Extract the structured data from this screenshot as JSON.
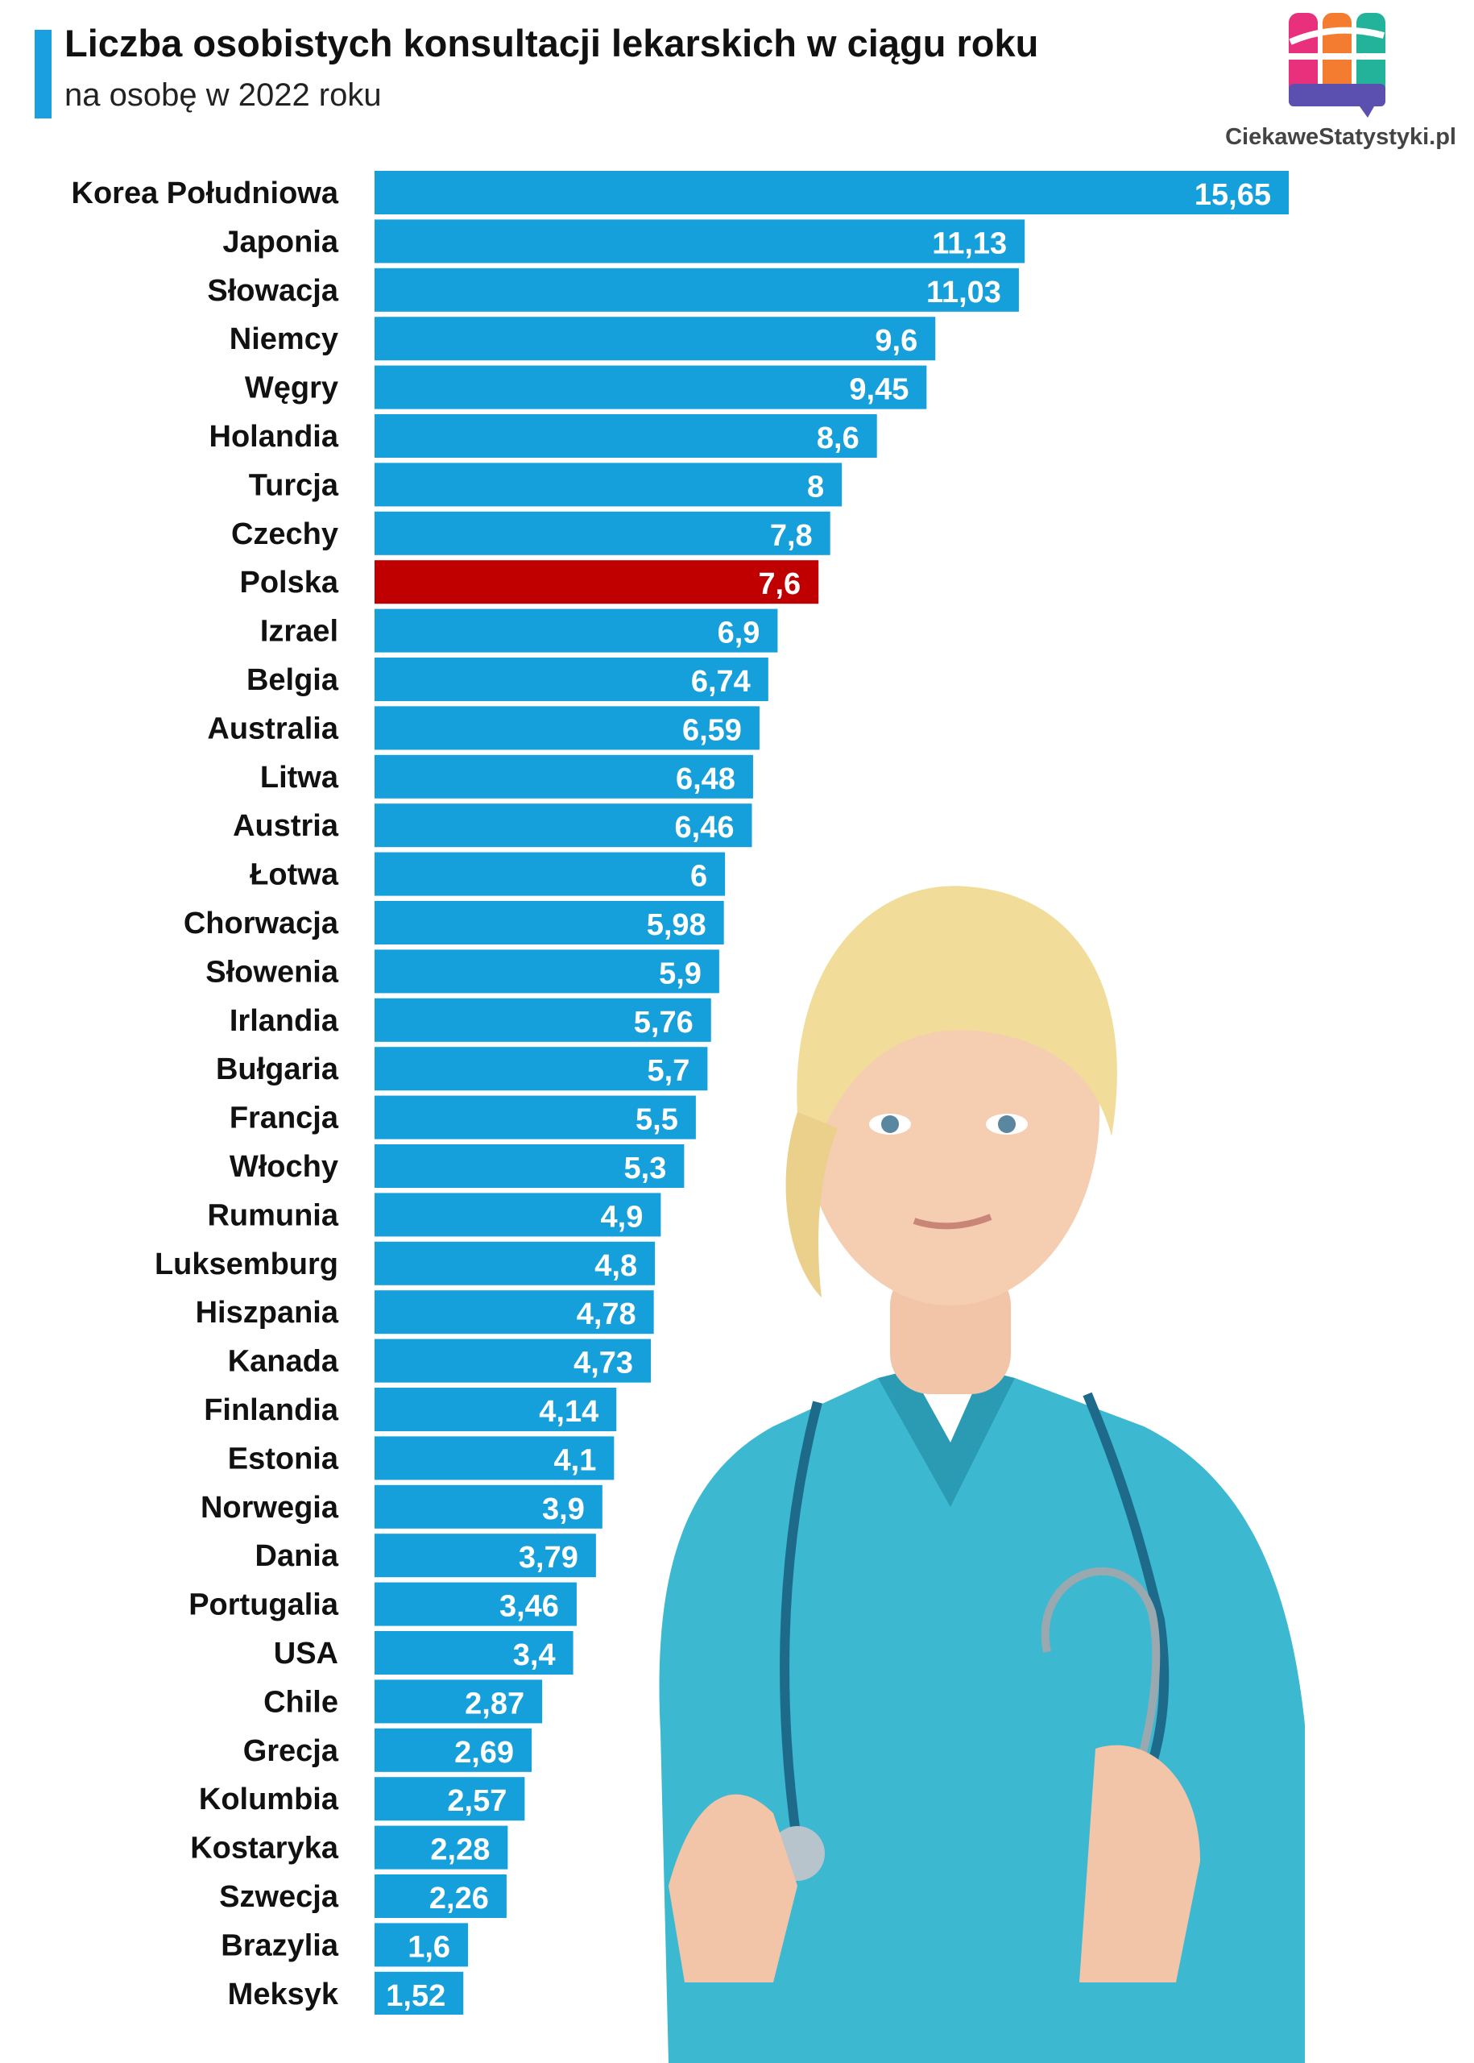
{
  "header": {
    "title": "Liczba osobistych konsultacji lekarskich w ciągu roku",
    "subtitle": "na osobę w 2022 roku"
  },
  "logo": {
    "text": "CiekaweStatystyki.pl"
  },
  "colors": {
    "bar": "#15a0dc",
    "highlight": "#c00000",
    "accent": "#1aa0e0"
  },
  "chart_data": {
    "type": "bar",
    "orientation": "horizontal",
    "title": "Liczba osobistych konsultacji lekarskich w ciągu roku",
    "subtitle": "na osobę w 2022 roku",
    "highlight": "Polska",
    "categories": [
      "Korea Południowa",
      "Japonia",
      "Słowacja",
      "Niemcy",
      "Węgry",
      "Holandia",
      "Turcja",
      "Czechy",
      "Polska",
      "Izrael",
      "Belgia",
      "Australia",
      "Litwa",
      "Austria",
      "Łotwa",
      "Chorwacja",
      "Słowenia",
      "Irlandia",
      "Bułgaria",
      "Francja",
      "Włochy",
      "Rumunia",
      "Luksemburg",
      "Hiszpania",
      "Kanada",
      "Finlandia",
      "Estonia",
      "Norwegia",
      "Dania",
      "Portugalia",
      "USA",
      "Chile",
      "Grecja",
      "Kolumbia",
      "Kostaryka",
      "Szwecja",
      "Brazylia",
      "Meksyk"
    ],
    "values": [
      15.65,
      11.13,
      11.03,
      9.6,
      9.45,
      8.6,
      8,
      7.8,
      7.6,
      6.9,
      6.74,
      6.59,
      6.48,
      6.46,
      6,
      5.98,
      5.9,
      5.76,
      5.7,
      5.5,
      5.3,
      4.9,
      4.8,
      4.78,
      4.73,
      4.14,
      4.1,
      3.9,
      3.79,
      3.46,
      3.4,
      2.87,
      2.69,
      2.57,
      2.28,
      2.26,
      1.6,
      1.52
    ],
    "value_labels": [
      "15,65",
      "11,13",
      "11,03",
      "9,6",
      "9,45",
      "8,6",
      "8",
      "7,8",
      "7,6",
      "6,9",
      "6,74",
      "6,59",
      "6,48",
      "6,46",
      "6",
      "5,98",
      "5,9",
      "5,76",
      "5,7",
      "5,5",
      "5,3",
      "4,9",
      "4,8",
      "4,78",
      "4,73",
      "4,14",
      "4,1",
      "3,9",
      "3,79",
      "3,46",
      "3,4",
      "2,87",
      "2,69",
      "2,57",
      "2,28",
      "2,26",
      "1,6",
      "1,52"
    ],
    "xlim": [
      0,
      15.65
    ]
  }
}
